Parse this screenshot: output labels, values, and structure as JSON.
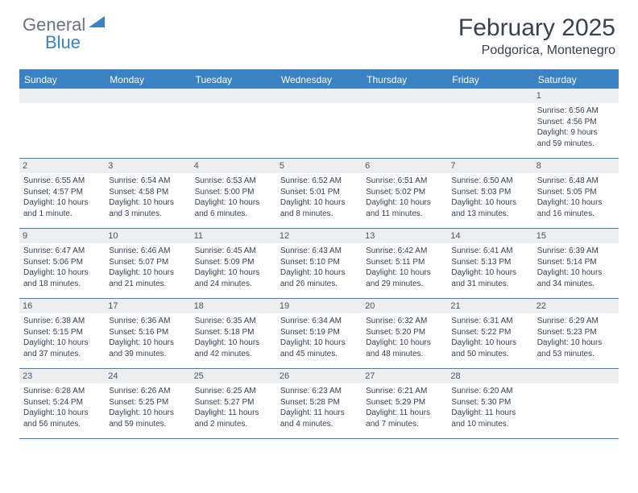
{
  "logo": {
    "text1": "General",
    "text2": "Blue"
  },
  "title": "February 2025",
  "location": "Podgorica, Montenegro",
  "weekdays": [
    "Sunday",
    "Monday",
    "Tuesday",
    "Wednesday",
    "Thursday",
    "Friday",
    "Saturday"
  ],
  "colors": {
    "accent": "#3b82c4",
    "weekday_text": "#ffffff",
    "daynum_bg": "#eceef0",
    "text": "#374151",
    "logo_gray": "#6b7280"
  },
  "weeks": [
    [
      {
        "blank": true
      },
      {
        "blank": true
      },
      {
        "blank": true
      },
      {
        "blank": true
      },
      {
        "blank": true
      },
      {
        "blank": true
      },
      {
        "n": "1",
        "sunrise": "Sunrise: 6:56 AM",
        "sunset": "Sunset: 4:56 PM",
        "d1": "Daylight: 9 hours",
        "d2": "and 59 minutes."
      }
    ],
    [
      {
        "n": "2",
        "sunrise": "Sunrise: 6:55 AM",
        "sunset": "Sunset: 4:57 PM",
        "d1": "Daylight: 10 hours",
        "d2": "and 1 minute."
      },
      {
        "n": "3",
        "sunrise": "Sunrise: 6:54 AM",
        "sunset": "Sunset: 4:58 PM",
        "d1": "Daylight: 10 hours",
        "d2": "and 3 minutes."
      },
      {
        "n": "4",
        "sunrise": "Sunrise: 6:53 AM",
        "sunset": "Sunset: 5:00 PM",
        "d1": "Daylight: 10 hours",
        "d2": "and 6 minutes."
      },
      {
        "n": "5",
        "sunrise": "Sunrise: 6:52 AM",
        "sunset": "Sunset: 5:01 PM",
        "d1": "Daylight: 10 hours",
        "d2": "and 8 minutes."
      },
      {
        "n": "6",
        "sunrise": "Sunrise: 6:51 AM",
        "sunset": "Sunset: 5:02 PM",
        "d1": "Daylight: 10 hours",
        "d2": "and 11 minutes."
      },
      {
        "n": "7",
        "sunrise": "Sunrise: 6:50 AM",
        "sunset": "Sunset: 5:03 PM",
        "d1": "Daylight: 10 hours",
        "d2": "and 13 minutes."
      },
      {
        "n": "8",
        "sunrise": "Sunrise: 6:48 AM",
        "sunset": "Sunset: 5:05 PM",
        "d1": "Daylight: 10 hours",
        "d2": "and 16 minutes."
      }
    ],
    [
      {
        "n": "9",
        "sunrise": "Sunrise: 6:47 AM",
        "sunset": "Sunset: 5:06 PM",
        "d1": "Daylight: 10 hours",
        "d2": "and 18 minutes."
      },
      {
        "n": "10",
        "sunrise": "Sunrise: 6:46 AM",
        "sunset": "Sunset: 5:07 PM",
        "d1": "Daylight: 10 hours",
        "d2": "and 21 minutes."
      },
      {
        "n": "11",
        "sunrise": "Sunrise: 6:45 AM",
        "sunset": "Sunset: 5:09 PM",
        "d1": "Daylight: 10 hours",
        "d2": "and 24 minutes."
      },
      {
        "n": "12",
        "sunrise": "Sunrise: 6:43 AM",
        "sunset": "Sunset: 5:10 PM",
        "d1": "Daylight: 10 hours",
        "d2": "and 26 minutes."
      },
      {
        "n": "13",
        "sunrise": "Sunrise: 6:42 AM",
        "sunset": "Sunset: 5:11 PM",
        "d1": "Daylight: 10 hours",
        "d2": "and 29 minutes."
      },
      {
        "n": "14",
        "sunrise": "Sunrise: 6:41 AM",
        "sunset": "Sunset: 5:13 PM",
        "d1": "Daylight: 10 hours",
        "d2": "and 31 minutes."
      },
      {
        "n": "15",
        "sunrise": "Sunrise: 6:39 AM",
        "sunset": "Sunset: 5:14 PM",
        "d1": "Daylight: 10 hours",
        "d2": "and 34 minutes."
      }
    ],
    [
      {
        "n": "16",
        "sunrise": "Sunrise: 6:38 AM",
        "sunset": "Sunset: 5:15 PM",
        "d1": "Daylight: 10 hours",
        "d2": "and 37 minutes."
      },
      {
        "n": "17",
        "sunrise": "Sunrise: 6:36 AM",
        "sunset": "Sunset: 5:16 PM",
        "d1": "Daylight: 10 hours",
        "d2": "and 39 minutes."
      },
      {
        "n": "18",
        "sunrise": "Sunrise: 6:35 AM",
        "sunset": "Sunset: 5:18 PM",
        "d1": "Daylight: 10 hours",
        "d2": "and 42 minutes."
      },
      {
        "n": "19",
        "sunrise": "Sunrise: 6:34 AM",
        "sunset": "Sunset: 5:19 PM",
        "d1": "Daylight: 10 hours",
        "d2": "and 45 minutes."
      },
      {
        "n": "20",
        "sunrise": "Sunrise: 6:32 AM",
        "sunset": "Sunset: 5:20 PM",
        "d1": "Daylight: 10 hours",
        "d2": "and 48 minutes."
      },
      {
        "n": "21",
        "sunrise": "Sunrise: 6:31 AM",
        "sunset": "Sunset: 5:22 PM",
        "d1": "Daylight: 10 hours",
        "d2": "and 50 minutes."
      },
      {
        "n": "22",
        "sunrise": "Sunrise: 6:29 AM",
        "sunset": "Sunset: 5:23 PM",
        "d1": "Daylight: 10 hours",
        "d2": "and 53 minutes."
      }
    ],
    [
      {
        "n": "23",
        "sunrise": "Sunrise: 6:28 AM",
        "sunset": "Sunset: 5:24 PM",
        "d1": "Daylight: 10 hours",
        "d2": "and 56 minutes."
      },
      {
        "n": "24",
        "sunrise": "Sunrise: 6:26 AM",
        "sunset": "Sunset: 5:25 PM",
        "d1": "Daylight: 10 hours",
        "d2": "and 59 minutes."
      },
      {
        "n": "25",
        "sunrise": "Sunrise: 6:25 AM",
        "sunset": "Sunset: 5:27 PM",
        "d1": "Daylight: 11 hours",
        "d2": "and 2 minutes."
      },
      {
        "n": "26",
        "sunrise": "Sunrise: 6:23 AM",
        "sunset": "Sunset: 5:28 PM",
        "d1": "Daylight: 11 hours",
        "d2": "and 4 minutes."
      },
      {
        "n": "27",
        "sunrise": "Sunrise: 6:21 AM",
        "sunset": "Sunset: 5:29 PM",
        "d1": "Daylight: 11 hours",
        "d2": "and 7 minutes."
      },
      {
        "n": "28",
        "sunrise": "Sunrise: 6:20 AM",
        "sunset": "Sunset: 5:30 PM",
        "d1": "Daylight: 11 hours",
        "d2": "and 10 minutes."
      },
      {
        "blank": true
      }
    ]
  ]
}
